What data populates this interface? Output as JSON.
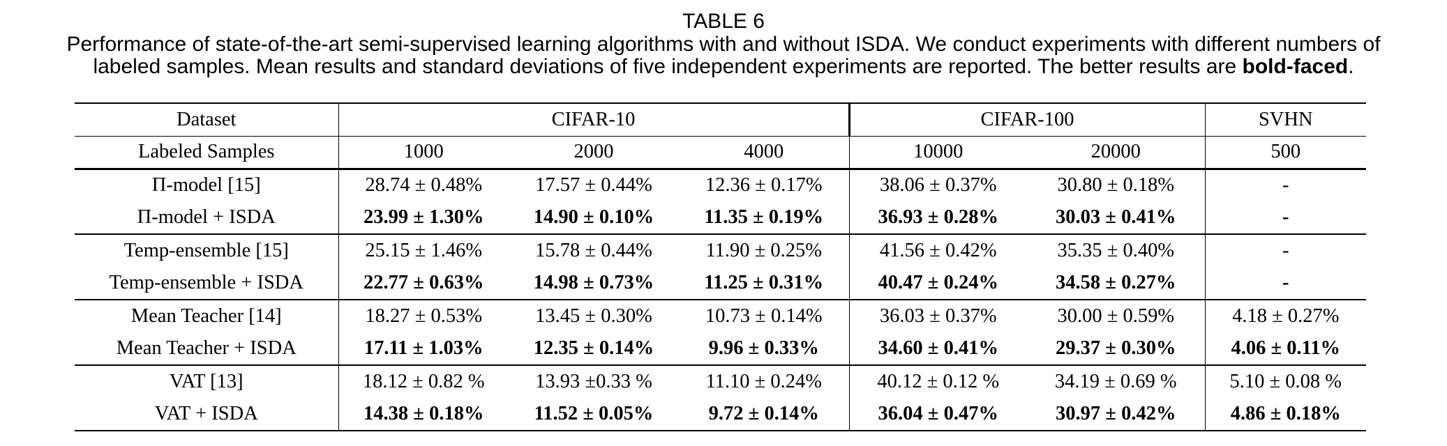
{
  "page": {
    "title": "TABLE 6",
    "caption_line1": "Performance of state-of-the-art semi-supervised learning algorithms with and without ISDA. We conduct experiments with different numbers of",
    "caption_line2_prefix": "labeled samples. Mean results and standard deviations of five independent experiments are reported. The better results are ",
    "caption_bold_word": "bold-faced",
    "caption_suffix": "."
  },
  "colors": {
    "text": "#000000",
    "background": "#ffffff",
    "rule": "#000000"
  },
  "table": {
    "header": {
      "dataset_label": "Dataset",
      "groups": [
        {
          "label": "CIFAR-10",
          "colspan": 3
        },
        {
          "label": "CIFAR-100",
          "colspan": 2
        },
        {
          "label": "SVHN",
          "colspan": 1
        }
      ],
      "labeled_samples_label": "Labeled Samples",
      "sample_counts": [
        "1000",
        "2000",
        "4000",
        "10000",
        "20000",
        "500"
      ]
    },
    "rows": [
      {
        "method": "Π-model [15]",
        "bold": false,
        "values": [
          "28.74 ± 0.48%",
          "17.57 ± 0.44%",
          "12.36 ± 0.17%",
          "38.06 ± 0.37%",
          "30.80 ± 0.18%",
          "-"
        ]
      },
      {
        "method": "Π-model + ISDA",
        "bold": true,
        "values": [
          "23.99 ± 1.30%",
          "14.90 ± 0.10%",
          "11.35 ± 0.19%",
          "36.93 ± 0.28%",
          "30.03 ± 0.41%",
          "-"
        ]
      },
      {
        "method": "Temp-ensemble [15]",
        "bold": false,
        "values": [
          "25.15 ± 1.46%",
          "15.78 ± 0.44%",
          "11.90 ± 0.25%",
          "41.56 ± 0.42%",
          "35.35 ± 0.40%",
          "-"
        ]
      },
      {
        "method": "Temp-ensemble + ISDA",
        "bold": true,
        "values": [
          "22.77 ± 0.63%",
          "14.98 ± 0.73%",
          "11.25 ± 0.31%",
          "40.47 ± 0.24%",
          "34.58 ± 0.27%",
          "-"
        ]
      },
      {
        "method": "Mean Teacher [14]",
        "bold": false,
        "values": [
          "18.27 ± 0.53%",
          "13.45 ± 0.30%",
          "10.73 ± 0.14%",
          "36.03 ± 0.37%",
          "30.00 ± 0.59%",
          "4.18 ± 0.27%"
        ]
      },
      {
        "method": "Mean Teacher + ISDA",
        "bold": true,
        "values": [
          "17.11 ± 1.03%",
          "12.35 ± 0.14%",
          "9.96 ± 0.33%",
          "34.60 ± 0.41%",
          "29.37 ± 0.30%",
          "4.06 ± 0.11%"
        ]
      },
      {
        "method": "VAT [13]",
        "bold": false,
        "values": [
          "18.12 ± 0.82 %",
          "13.93 ±0.33 %",
          "11.10 ± 0.24%",
          "40.12 ± 0.12 %",
          "34.19 ± 0.69 %",
          "5.10 ± 0.08 %"
        ]
      },
      {
        "method": "VAT + ISDA",
        "bold": true,
        "values": [
          "14.38 ± 0.18%",
          "11.52 ± 0.05%",
          "9.72 ± 0.14%",
          "36.04 ± 0.47%",
          "30.97 ± 0.42%",
          "4.86 ± 0.18%"
        ]
      }
    ]
  }
}
